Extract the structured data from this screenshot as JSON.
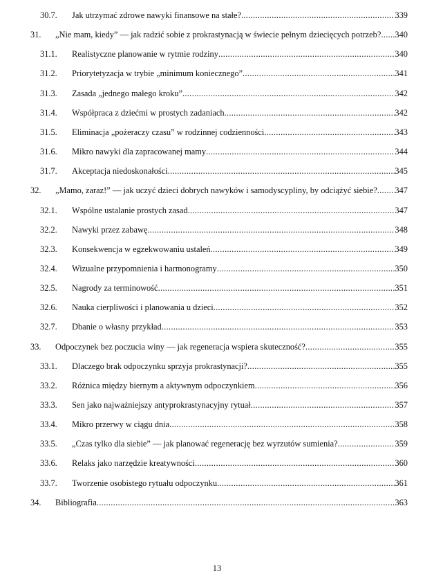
{
  "toc": [
    {
      "level": "sub",
      "number": "30.7.",
      "title": "Jak utrzymać zdrowe nawyki finansowe na stałe?",
      "page": "339"
    },
    {
      "level": "main",
      "number": "31.",
      "title": "„Nie mam, kiedy” — jak radzić sobie z prokrastynacją w świecie pełnym dziecięcych potrzeb?",
      "page": "340"
    },
    {
      "level": "sub",
      "number": "31.1.",
      "title": "Realistyczne planowanie w rytmie rodziny",
      "page": "340"
    },
    {
      "level": "sub",
      "number": "31.2.",
      "title": "Priorytetyzacja w trybie „minimum koniecznego”",
      "page": "341"
    },
    {
      "level": "sub",
      "number": "31.3.",
      "title": "Zasada „jednego małego kroku”",
      "page": "342"
    },
    {
      "level": "sub",
      "number": "31.4.",
      "title": "Współpraca z dziećmi w prostych zadaniach",
      "page": "342"
    },
    {
      "level": "sub",
      "number": "31.5.",
      "title": "Eliminacja „pożeraczy czasu” w rodzinnej codzienności",
      "page": "343"
    },
    {
      "level": "sub",
      "number": "31.6.",
      "title": "Mikro nawyki dla zapracowanej mamy",
      "page": "344"
    },
    {
      "level": "sub",
      "number": "31.7.",
      "title": "Akceptacja niedoskonałości",
      "page": "345"
    },
    {
      "level": "main",
      "number": "32.",
      "title": "„Mamo, zaraz!” — jak uczyć dzieci dobrych nawyków i samodyscypliny, by odciążyć siebie?",
      "page": "347"
    },
    {
      "level": "sub",
      "number": "32.1.",
      "title": "Wspólne ustalanie prostych zasad",
      "page": "347"
    },
    {
      "level": "sub",
      "number": "32.2.",
      "title": "Nawyki przez zabawę",
      "page": "348"
    },
    {
      "level": "sub",
      "number": "32.3.",
      "title": "Konsekwencja w egzekwowaniu ustaleń",
      "page": "349"
    },
    {
      "level": "sub",
      "number": "32.4.",
      "title": "Wizualne przypomnienia i harmonogramy",
      "page": "350"
    },
    {
      "level": "sub",
      "number": "32.5.",
      "title": "Nagrody za terminowość",
      "page": "351"
    },
    {
      "level": "sub",
      "number": "32.6.",
      "title": "Nauka cierpliwości i planowania u dzieci",
      "page": "352"
    },
    {
      "level": "sub",
      "number": "32.7.",
      "title": "Dbanie o własny przykład",
      "page": "353"
    },
    {
      "level": "main",
      "number": "33.",
      "title": "Odpoczynek bez poczucia winy — jak regeneracja wspiera skuteczność?",
      "page": "355"
    },
    {
      "level": "sub",
      "number": "33.1.",
      "title": "Dlaczego brak odpoczynku sprzyja prokrastynacji?",
      "page": "355"
    },
    {
      "level": "sub",
      "number": "33.2.",
      "title": "Różnica między biernym a aktywnym odpoczynkiem",
      "page": "356"
    },
    {
      "level": "sub",
      "number": "33.3.",
      "title": "Sen jako najważniejszy antyprokrastynacyjny rytuał",
      "page": "357"
    },
    {
      "level": "sub",
      "number": "33.4.",
      "title": "Mikro przerwy w ciągu dnia",
      "page": "358"
    },
    {
      "level": "sub",
      "number": "33.5.",
      "title": "„Czas tylko dla siebie” — jak planować regenerację bez wyrzutów sumienia?",
      "page": "359"
    },
    {
      "level": "sub",
      "number": "33.6.",
      "title": "Relaks jako narzędzie kreatywności",
      "page": "360"
    },
    {
      "level": "sub",
      "number": "33.7.",
      "title": "Tworzenie osobistego rytuału odpoczynku",
      "page": "361"
    },
    {
      "level": "main",
      "number": "34.",
      "title": "Bibliografia",
      "page": "363"
    }
  ],
  "footer": {
    "page_number": "13"
  }
}
